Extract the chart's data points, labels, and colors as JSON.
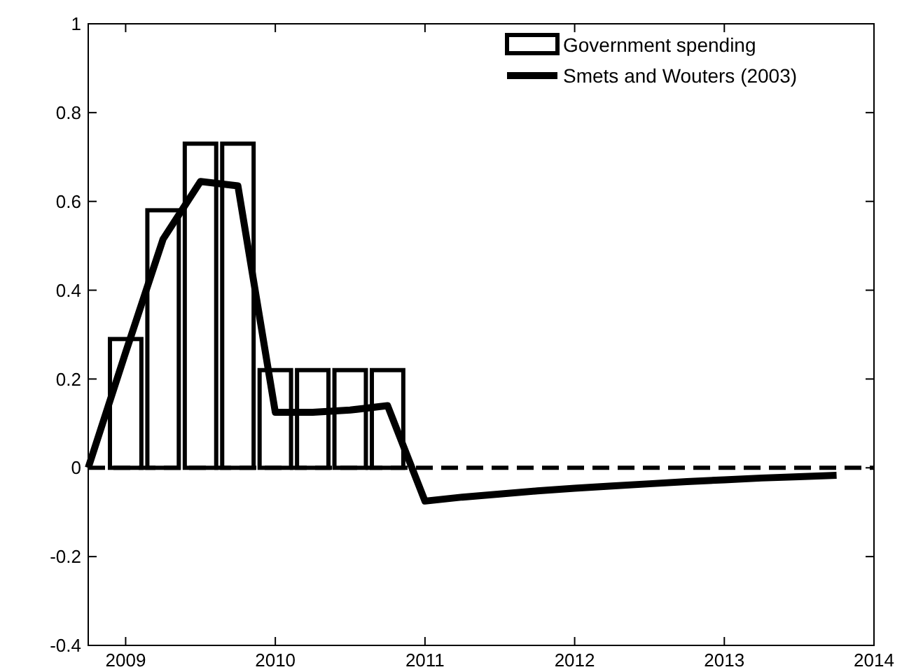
{
  "chart_data": {
    "type": "bar",
    "xlim": [
      2008.75,
      2014
    ],
    "xticks": [
      2009,
      2010,
      2011,
      2012,
      2013,
      2014
    ],
    "ylim": [
      -0.4,
      1
    ],
    "yticks": [
      -0.4,
      -0.2,
      0,
      0.2,
      0.4,
      0.6,
      0.8,
      1
    ],
    "legend": "top right",
    "ref_lines": [
      {
        "axis": "y",
        "value": 0,
        "line_style": "dashed",
        "color": "#000000"
      }
    ],
    "series": [
      {
        "name": "Government spending",
        "color": "#ffffff",
        "x": [
          2009,
          2009.25,
          2009.5,
          2009.75,
          2010,
          2010.25,
          2010.5,
          2010.75
        ],
        "values": [
          0.29,
          0.58,
          0.73,
          0.73,
          0.22,
          0.22,
          0.22,
          0.22
        ]
      },
      {
        "name": "Smets and Wouters (2003)",
        "type": "line",
        "color": "#000000",
        "x": [
          2008.75,
          2009,
          2009.25,
          2009.5,
          2009.75,
          2010,
          2010.25,
          2010.5,
          2010.75,
          2011,
          2011.25,
          2011.5,
          2011.75,
          2012,
          2012.25,
          2012.5,
          2012.75,
          2013,
          2013.25,
          2013.5,
          2013.75
        ],
        "values": [
          0,
          0.26,
          0.515,
          0.645,
          0.635,
          0.125,
          0.125,
          0.13,
          0.14,
          -0.075,
          -0.066,
          -0.059,
          -0.052,
          -0.046,
          -0.041,
          -0.036,
          -0.031,
          -0.027,
          -0.023,
          -0.02,
          -0.017
        ]
      }
    ]
  }
}
